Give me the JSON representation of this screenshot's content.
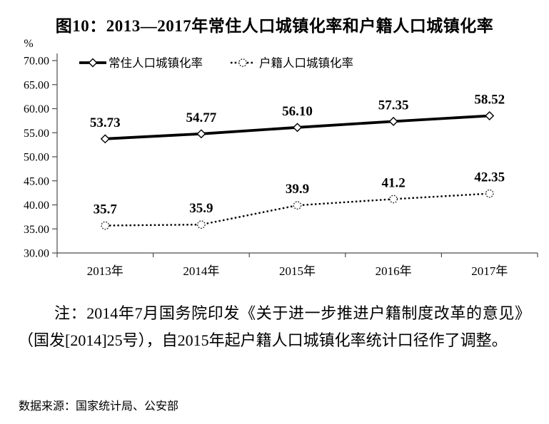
{
  "header": {
    "title": "图10：2013—2017年常住人口城镇化率和户籍人口城镇化率"
  },
  "chart_data": {
    "type": "line",
    "title": "图10：2013—2017年常住人口城镇化率和户籍人口城镇化率",
    "xlabel": "",
    "ylabel": "%",
    "ylim": [
      30,
      70
    ],
    "ytick_step": 5,
    "ytick_labels": [
      "70.00",
      "65.00",
      "60.00",
      "55.00",
      "50.00",
      "45.00",
      "40.00",
      "35.00",
      "30.00"
    ],
    "grid": false,
    "legend_position": "top",
    "categories": [
      "2013年",
      "2014年",
      "2015年",
      "2016年",
      "2017年"
    ],
    "series": [
      {
        "name": "常住人口城镇化率",
        "values": [
          53.73,
          54.77,
          56.1,
          57.35,
          58.52
        ],
        "labels": [
          "53.73",
          "54.77",
          "56.10",
          "57.35",
          "58.52"
        ],
        "line_style": "solid",
        "marker": "diamond",
        "color": "#000000"
      },
      {
        "name": "户籍人口城镇化率",
        "values": [
          35.7,
          35.9,
          39.9,
          41.2,
          42.35
        ],
        "labels": [
          "35.7",
          "35.9",
          "39.9",
          "41.2",
          "42.35"
        ],
        "line_style": "dotted",
        "marker": "circle",
        "color": "#000000"
      }
    ]
  },
  "note": {
    "text": "注：2014年7月国务院印发《关于进一步推进户籍制度改革的意见》（国发[2014]25号），自2015年起户籍人口城镇化率统计口径作了调整。"
  },
  "source": {
    "text": "数据来源：国家统计局、公安部"
  }
}
